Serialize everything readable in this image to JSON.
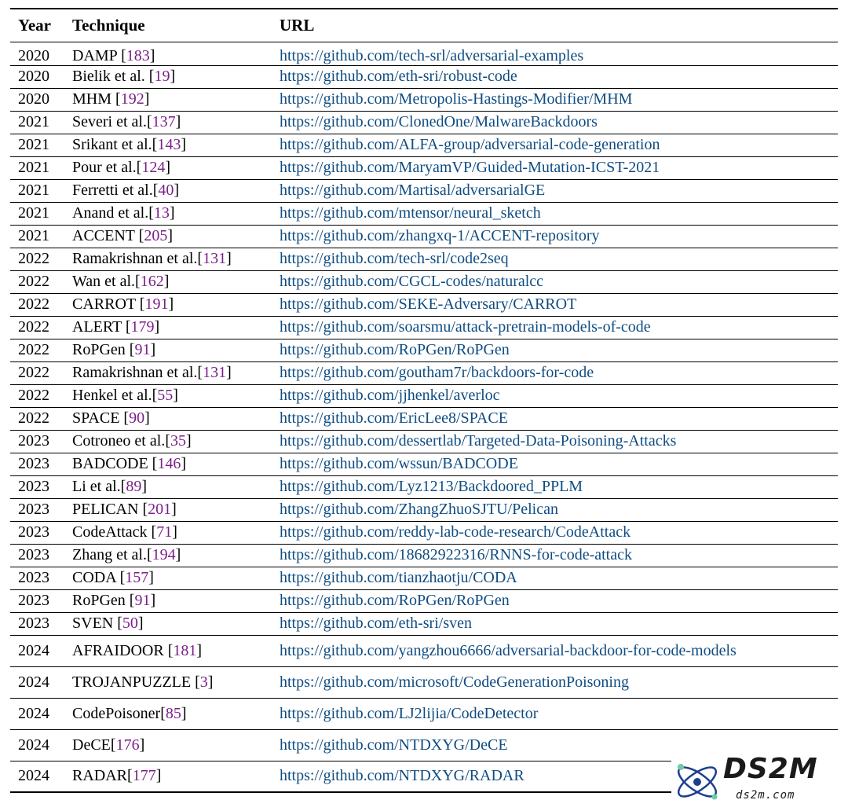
{
  "table": {
    "headers": {
      "year": "Year",
      "technique": "Technique",
      "url": "URL"
    },
    "rows": [
      {
        "year": "2020",
        "technique": "DAMP",
        "sep": " ",
        "ref": "183",
        "url": "https://github.com/tech-srl/adversarial-examples"
      },
      {
        "year": "2020",
        "technique": "Bielik et al.",
        "sep": " ",
        "ref": "19",
        "url": "https://github.com/eth-sri/robust-code"
      },
      {
        "year": "2020",
        "technique": "MHM",
        "sep": " ",
        "ref": "192",
        "url": "https://github.com/Metropolis-Hastings-Modifier/MHM"
      },
      {
        "year": "2021",
        "technique": "Severi et al.",
        "sep": "",
        "ref": "137",
        "url": "https://github.com/ClonedOne/MalwareBackdoors"
      },
      {
        "year": "2021",
        "technique": "Srikant et al.",
        "sep": "",
        "ref": "143",
        "url": "https://github.com/ALFA-group/adversarial-code-generation"
      },
      {
        "year": "2021",
        "technique": "Pour et al.",
        "sep": "",
        "ref": "124",
        "url": "https://github.com/MaryamVP/Guided-Mutation-ICST-2021"
      },
      {
        "year": "2021",
        "technique": "Ferretti et al.",
        "sep": "",
        "ref": "40",
        "url": "https://github.com/Martisal/adversarialGE"
      },
      {
        "year": "2021",
        "technique": "Anand et al.",
        "sep": "",
        "ref": "13",
        "url": "https://github.com/mtensor/neural_sketch"
      },
      {
        "year": "2021",
        "technique": "ACCENT",
        "sep": " ",
        "ref": "205",
        "url": "https://github.com/zhangxq-1/ACCENT-repository"
      },
      {
        "year": "2022",
        "technique": "Ramakrishnan et al.",
        "sep": "",
        "ref": "131",
        "url": "https://github.com/tech-srl/code2seq"
      },
      {
        "year": "2022",
        "technique": "Wan et al.",
        "sep": "",
        "ref": "162",
        "url": "https://github.com/CGCL-codes/naturalcc"
      },
      {
        "year": "2022",
        "technique": "CARROT",
        "sep": " ",
        "ref": "191",
        "url": "https://github.com/SEKE-Adversary/CARROT"
      },
      {
        "year": "2022",
        "technique": "ALERT",
        "sep": " ",
        "ref": "179",
        "url": "https://github.com/soarsmu/attack-pretrain-models-of-code"
      },
      {
        "year": "2022",
        "technique": "RoPGen",
        "sep": " ",
        "ref": "91",
        "url": "https://github.com/RoPGen/RoPGen"
      },
      {
        "year": "2022",
        "technique": "Ramakrishnan et al.",
        "sep": "",
        "ref": "131",
        "url": "https://github.com/goutham7r/backdoors-for-code"
      },
      {
        "year": "2022",
        "technique": "Henkel et al.",
        "sep": "",
        "ref": "55",
        "url": "https://github.com/jjhenkel/averloc"
      },
      {
        "year": "2022",
        "technique": "SPACE",
        "sep": " ",
        "ref": "90",
        "url": "https://github.com/EricLee8/SPACE"
      },
      {
        "year": "2023",
        "technique": "Cotroneo et al.",
        "sep": "",
        "ref": "35",
        "url": "https://github.com/dessertlab/Targeted-Data-Poisoning-Attacks"
      },
      {
        "year": "2023",
        "technique": "BADCODE",
        "sep": " ",
        "ref": "146",
        "url": "https://github.com/wssun/BADCODE"
      },
      {
        "year": "2023",
        "technique": "Li et al.",
        "sep": "",
        "ref": "89",
        "url": "https://github.com/Lyz1213/Backdoored_PPLM"
      },
      {
        "year": "2023",
        "technique": "PELICAN",
        "sep": " ",
        "ref": "201",
        "url": "https://github.com/ZhangZhuoSJTU/Pelican"
      },
      {
        "year": "2023",
        "technique": "CodeAttack",
        "sep": " ",
        "ref": "71",
        "url": "https://github.com/reddy-lab-code-research/CodeAttack"
      },
      {
        "year": "2023",
        "technique": "Zhang et al.",
        "sep": "",
        "ref": "194",
        "url": "https://github.com/18682922316/RNNS-for-code-attack"
      },
      {
        "year": "2023",
        "technique": "CODA",
        "sep": " ",
        "ref": "157",
        "url": "https://github.com/tianzhaotju/CODA"
      },
      {
        "year": "2023",
        "technique": "RoPGen",
        "sep": " ",
        "ref": "91",
        "url": "https://github.com/RoPGen/RoPGen"
      },
      {
        "year": "2023",
        "technique": "SVEN",
        "sep": " ",
        "ref": "50",
        "url": "https://github.com/eth-sri/sven"
      },
      {
        "year": "2024",
        "technique": "AFRAIDOOR",
        "sep": " ",
        "ref": "181",
        "url": "https://github.com/yangzhou6666/adversarial-backdoor-for-code-models",
        "tall": true
      },
      {
        "year": "2024",
        "technique": "TROJANPUZZLE",
        "sep": " ",
        "ref": "3",
        "url": "https://github.com/microsoft/CodeGenerationPoisoning",
        "tall": true
      },
      {
        "year": "2024",
        "technique": "CodePoisoner",
        "sep": "",
        "ref": "85",
        "url": "https://github.com/LJ2lijia/CodeDetector",
        "tall": true
      },
      {
        "year": "2024",
        "technique": "DeCE",
        "sep": "",
        "ref": "176",
        "url": "https://github.com/NTDXYG/DeCE",
        "tall": true
      },
      {
        "year": "2024",
        "technique": "RADAR",
        "sep": "",
        "ref": "177",
        "url": "https://github.com/NTDXYG/RADAR",
        "tall": true
      }
    ]
  },
  "watermark": {
    "title": "DS2M",
    "subtitle": "ds2m.com",
    "icon": "atom-icon"
  },
  "colors": {
    "citation": "#7b1f8a",
    "url": "#0f4c81"
  }
}
